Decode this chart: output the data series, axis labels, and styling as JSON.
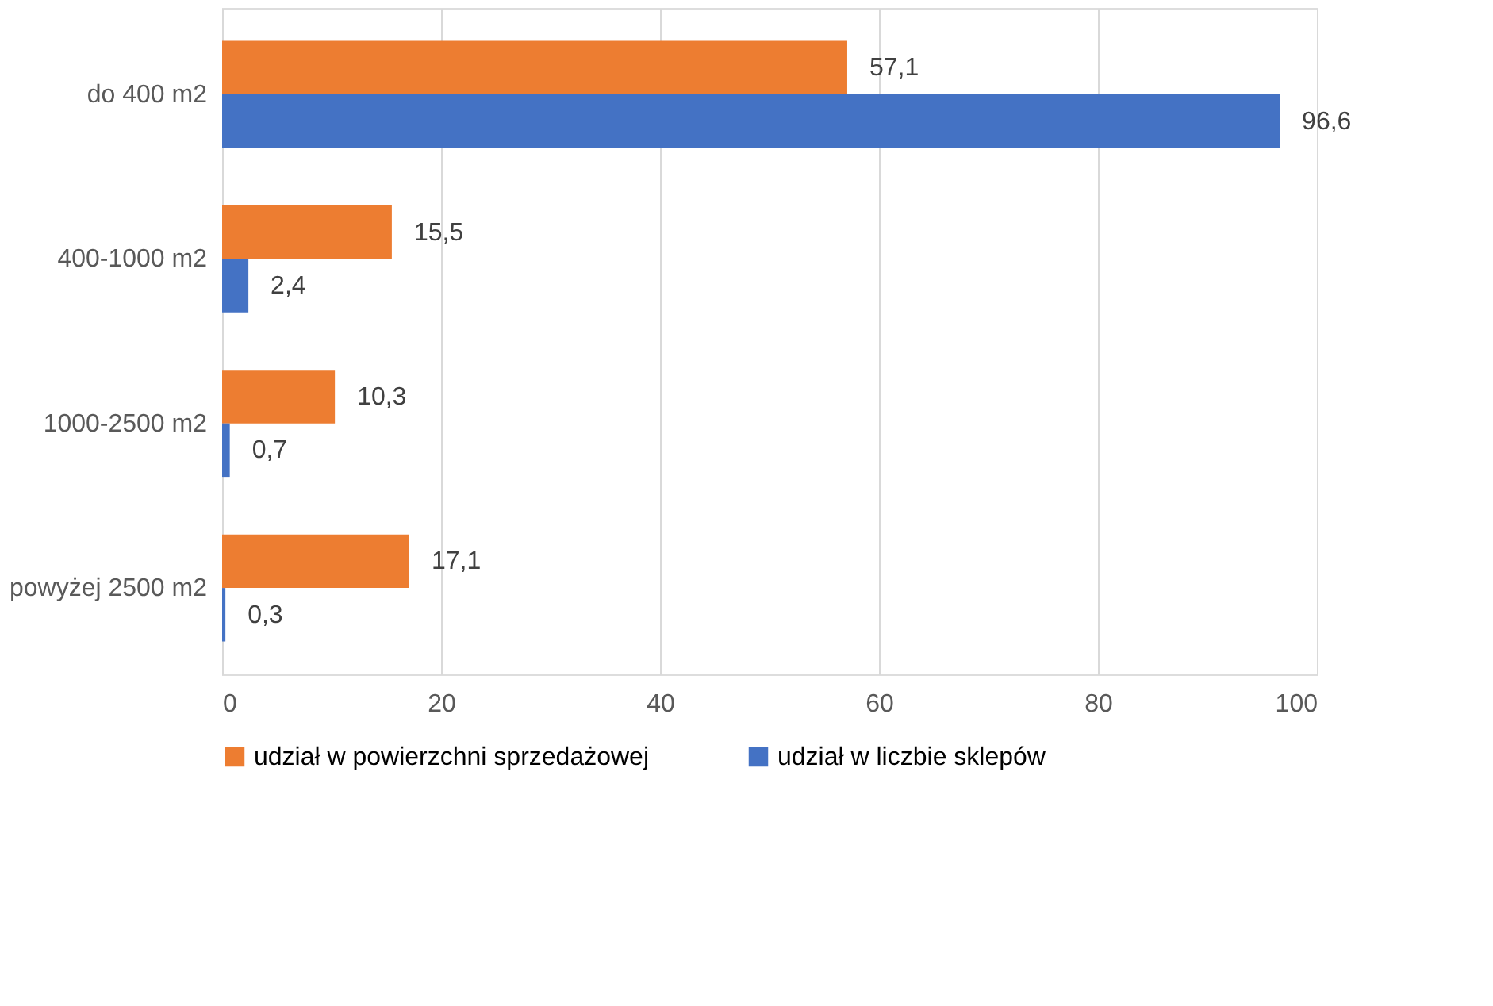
{
  "chart_data": {
    "type": "bar",
    "orientation": "horizontal",
    "categories": [
      "do 400 m2",
      "400-1000 m2",
      "1000-2500 m2",
      "powyżej 2500 m2"
    ],
    "series": [
      {
        "name": "udział w powierzchni sprzedażowej",
        "color": "#ed7d31",
        "values": [
          57.1,
          15.5,
          10.3,
          17.1
        ],
        "value_labels": [
          "57,1",
          "15,5",
          "10,3",
          "17,1"
        ]
      },
      {
        "name": "udział w liczbie sklepów",
        "color": "#4472c4",
        "values": [
          96.6,
          2.4,
          0.7,
          0.3
        ],
        "value_labels": [
          "96,6",
          "2,4",
          "0,7",
          "0,3"
        ]
      }
    ],
    "xlim": [
      0,
      100
    ],
    "xticks": [
      0,
      20,
      40,
      60,
      80,
      100
    ],
    "grid": "x",
    "legend": "bottom"
  }
}
